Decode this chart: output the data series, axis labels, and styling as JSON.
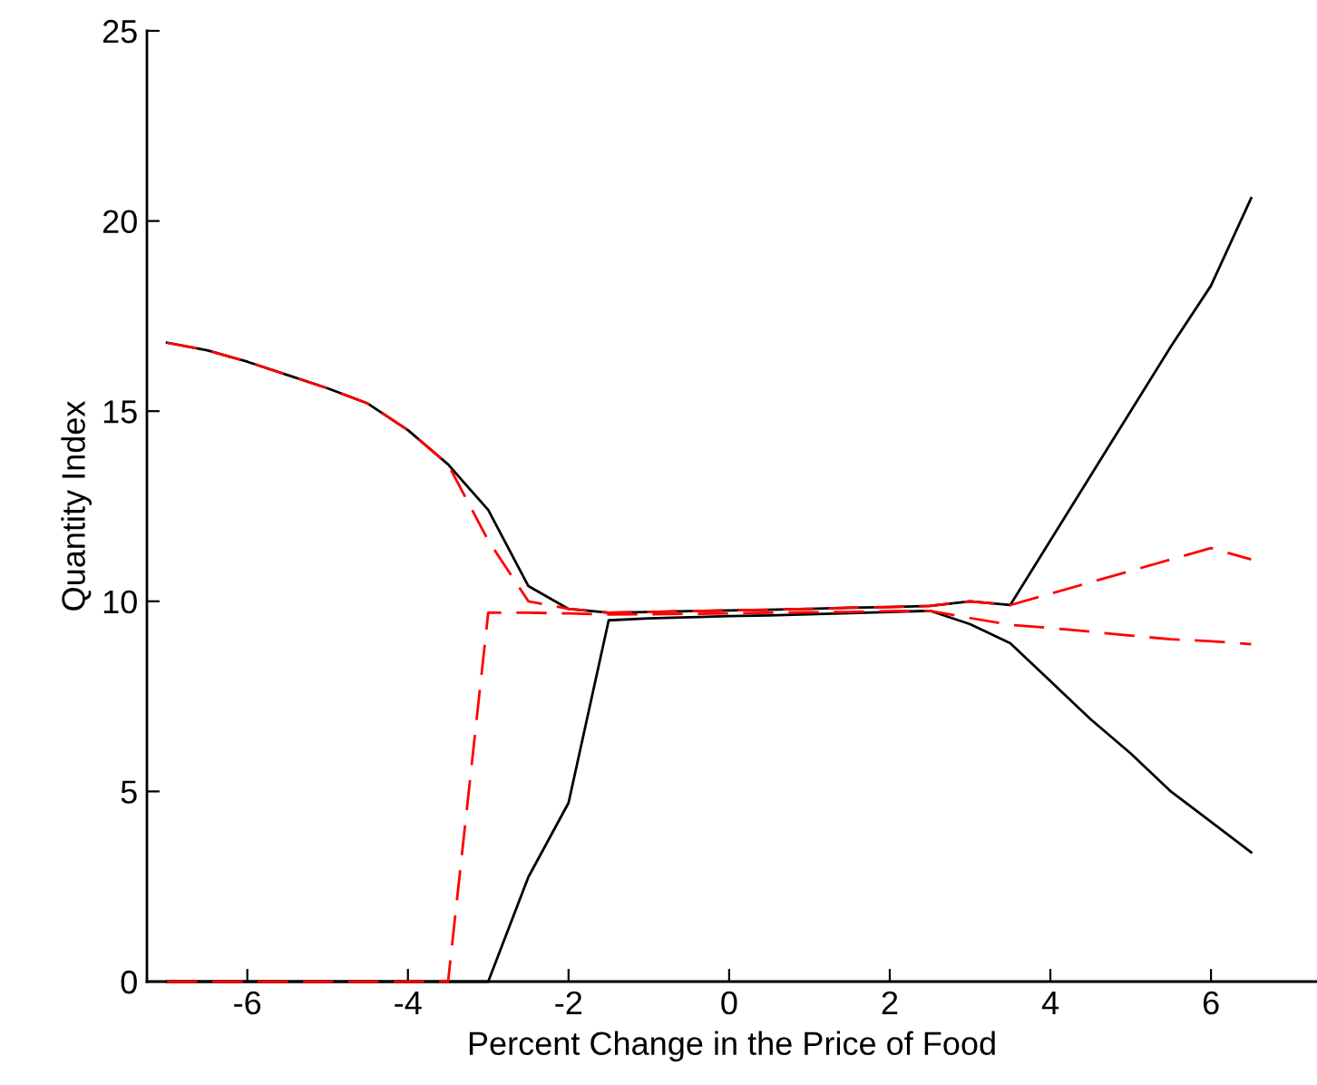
{
  "chart_data": {
    "type": "line",
    "xlabel": "Percent Change in the Price of Food",
    "ylabel": "Quantity Index",
    "x": [
      -7,
      -6.5,
      -6,
      -5.5,
      -5,
      -4.5,
      -4,
      -3.5,
      -3,
      -2.5,
      -2,
      -1.5,
      -1,
      -0.5,
      0,
      0.5,
      1,
      1.5,
      2,
      2.5,
      3,
      3.5,
      4,
      4.5,
      5,
      5.5,
      6,
      6.5
    ],
    "xlim": [
      -7.25,
      7.32
    ],
    "ylim": [
      0,
      25
    ],
    "xticks": [
      -6,
      -4,
      -2,
      0,
      2,
      4,
      6
    ],
    "yticks": [
      0,
      5,
      10,
      15,
      20,
      25
    ],
    "grid": false,
    "series": [
      {
        "color": "#000000",
        "line_style": "solid",
        "values": [
          16.8,
          16.6,
          16.3,
          15.95,
          15.6,
          15.2,
          14.5,
          13.6,
          12.4,
          10.4,
          9.8,
          9.7,
          9.72,
          9.74,
          9.76,
          9.78,
          9.8,
          9.83,
          9.85,
          9.88,
          10.0,
          9.9,
          11.6,
          13.3,
          15.0,
          16.7,
          18.3,
          20.6
        ]
      },
      {
        "color": "#000000",
        "line_style": "solid",
        "values": [
          0,
          0,
          0,
          0,
          0,
          0,
          0,
          0,
          0,
          2.75,
          4.7,
          9.5,
          9.55,
          9.58,
          9.61,
          9.63,
          9.66,
          9.69,
          9.72,
          9.75,
          9.4,
          8.9,
          7.9,
          6.9,
          6.0,
          5.0,
          4.2,
          3.4
        ]
      },
      {
        "color": "#ff0000",
        "line_style": "dashed",
        "values": [
          16.8,
          16.6,
          16.3,
          15.95,
          15.6,
          15.2,
          14.5,
          13.6,
          11.6,
          10.0,
          9.8,
          9.7,
          9.72,
          9.74,
          9.76,
          9.78,
          9.8,
          9.83,
          9.85,
          9.88,
          10.0,
          9.9,
          10.2,
          10.5,
          10.8,
          11.1,
          11.4,
          11.1
        ]
      },
      {
        "color": "#ff0000",
        "line_style": "dashed",
        "values": [
          0,
          0,
          0,
          0,
          0,
          0,
          0,
          0,
          9.7,
          9.7,
          9.68,
          9.65,
          9.66,
          9.67,
          9.68,
          9.7,
          9.71,
          9.72,
          9.74,
          9.75,
          9.56,
          9.38,
          9.3,
          9.2,
          9.1,
          9.0,
          8.95,
          8.87
        ]
      }
    ]
  }
}
